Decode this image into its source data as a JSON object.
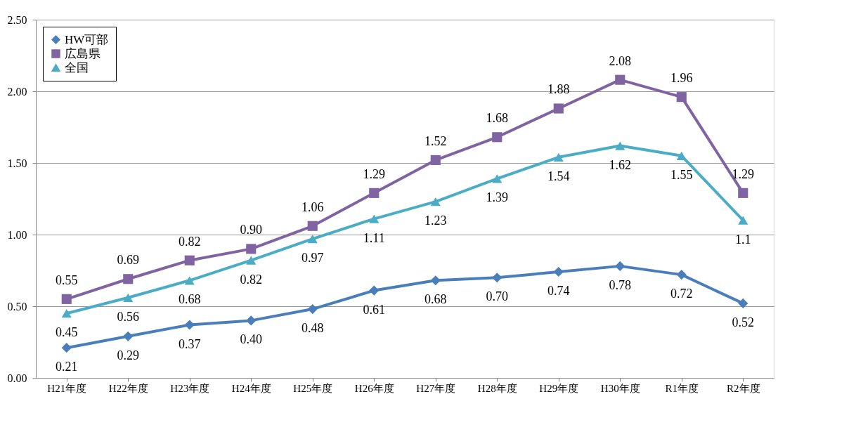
{
  "chart_data": {
    "type": "line",
    "categories": [
      "H21年度",
      "H22年度",
      "H23年度",
      "H24年度",
      "H25年度",
      "H26年度",
      "H27年度",
      "H28年度",
      "H29年度",
      "H30年度",
      "R1年度",
      "R2年度"
    ],
    "series": [
      {
        "name": "HW可部",
        "color": "#4a7ebb",
        "marker": "diamond",
        "values": [
          0.21,
          0.29,
          0.37,
          0.4,
          0.48,
          0.61,
          0.68,
          0.7,
          0.74,
          0.78,
          0.72,
          0.52
        ],
        "value_labels": [
          "0.21",
          "0.29",
          "0.37",
          "0.40",
          "0.48",
          "0.61",
          "0.68",
          "0.70",
          "0.74",
          "0.78",
          "0.72",
          "0.52"
        ]
      },
      {
        "name": "広島県",
        "color": "#8064a2",
        "marker": "square",
        "values": [
          0.55,
          0.69,
          0.82,
          0.9,
          1.06,
          1.29,
          1.52,
          1.68,
          1.88,
          2.08,
          1.96,
          1.29
        ],
        "value_labels": [
          "0.55",
          "0.69",
          "0.82",
          "0.90",
          "1.06",
          "1.29",
          "1.52",
          "1.68",
          "1.88",
          "2.08",
          "1.96",
          "1.29"
        ]
      },
      {
        "name": "全国",
        "color": "#4bacc6",
        "marker": "triangle",
        "values": [
          0.45,
          0.56,
          0.68,
          0.82,
          0.97,
          1.11,
          1.23,
          1.39,
          1.54,
          1.62,
          1.55,
          1.1
        ],
        "value_labels": [
          "0.45",
          "0.56",
          "0.68",
          "0.82",
          "0.97",
          "1.11",
          "1.23",
          "1.39",
          "1.54",
          "1.62",
          "1.55",
          "1.1"
        ]
      }
    ],
    "ylim": [
      0,
      2.5
    ],
    "yticks": [
      {
        "value": 0,
        "label": "0.00"
      },
      {
        "value": 0.5,
        "label": "0.50"
      },
      {
        "value": 1.0,
        "label": "1.00"
      },
      {
        "value": 1.5,
        "label": "1.50"
      },
      {
        "value": 2.0,
        "label": "2.00"
      },
      {
        "value": 2.5,
        "label": "2.50"
      }
    ],
    "grid": "y",
    "legend": "top left",
    "line_style": "solid"
  }
}
